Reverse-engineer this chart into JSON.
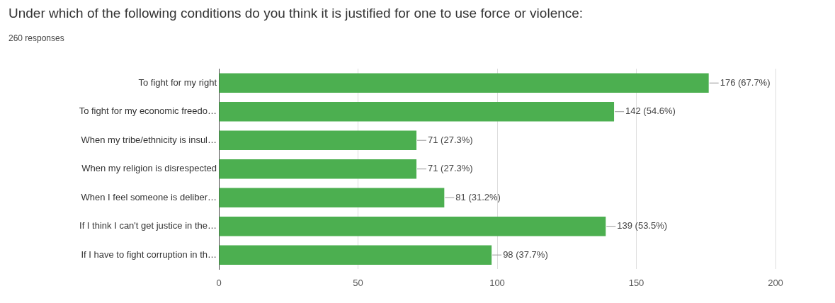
{
  "chart_data": {
    "type": "bar",
    "orientation": "horizontal",
    "title": "Under which of the following conditions do you think it is justified for one to use force or violence:",
    "subtitle": "260 responses",
    "categories": [
      "To fight for my right",
      "To fight for my economic freedo…",
      "When my tribe/ethnicity is insul…",
      "When my religion is disrespected",
      "When I feel someone is deliber…",
      "If I think I can't get justice in the…",
      "If I have to fight corruption in th…"
    ],
    "values": [
      176,
      142,
      71,
      71,
      81,
      139,
      98
    ],
    "value_labels": [
      "176 (67.7%)",
      "142 (54.6%)",
      "71 (27.3%)",
      "71 (27.3%)",
      "81 (31.2%)",
      "139 (53.5%)",
      "98 (37.7%)"
    ],
    "color": "#4caf50",
    "xlim": [
      0,
      200
    ],
    "xticks": [
      0,
      50,
      100,
      150,
      200
    ],
    "grid": "x",
    "legend": false
  }
}
